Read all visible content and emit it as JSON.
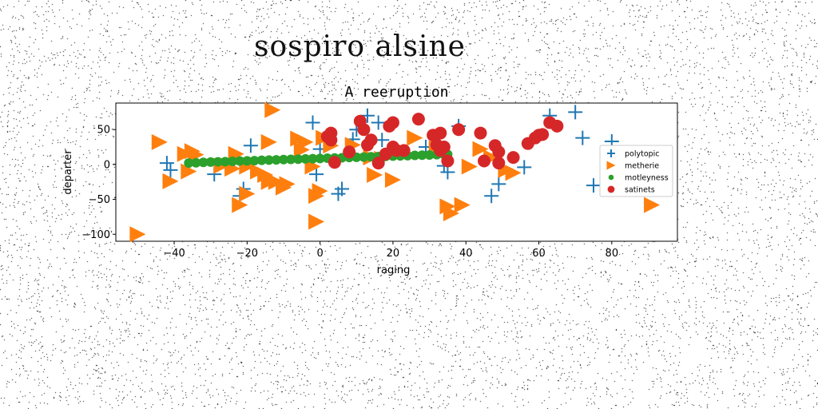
{
  "page": {
    "suptitle": "sospiro alsine"
  },
  "chart_data": {
    "type": "scatter",
    "title": "A reeruption",
    "xlabel": "raging",
    "ylabel": "departer",
    "xlim": [
      -56,
      98
    ],
    "ylim": [
      -110,
      88
    ],
    "xticks": [
      -40,
      -20,
      0,
      20,
      40,
      60,
      80
    ],
    "yticks": [
      -100,
      -50,
      0,
      50
    ],
    "grid": false,
    "legend_position": "right",
    "series": [
      {
        "name": "polytopic",
        "marker": "plus",
        "color": "#1f77b4",
        "points": [
          [
            -42,
            2
          ],
          [
            -41,
            -8
          ],
          [
            -29,
            -14
          ],
          [
            -22,
            -45
          ],
          [
            -21,
            -35
          ],
          [
            -19,
            27
          ],
          [
            -2,
            60
          ],
          [
            -1,
            -14
          ],
          [
            0,
            22
          ],
          [
            5,
            -42
          ],
          [
            6,
            -35
          ],
          [
            9,
            36
          ],
          [
            10,
            50
          ],
          [
            13,
            70
          ],
          [
            16,
            60
          ],
          [
            17,
            35
          ],
          [
            29,
            25
          ],
          [
            34,
            -2
          ],
          [
            35,
            -11
          ],
          [
            38,
            55
          ],
          [
            47,
            -45
          ],
          [
            49,
            -28
          ],
          [
            56,
            -4
          ],
          [
            63,
            70
          ],
          [
            70,
            75
          ],
          [
            72,
            38
          ],
          [
            75,
            -30
          ],
          [
            80,
            33
          ]
        ]
      },
      {
        "name": "metherie",
        "marker": "triangle-right",
        "color": "#ff7f0e",
        "points": [
          [
            -50,
            -100
          ],
          [
            -44,
            32
          ],
          [
            -41,
            -24
          ],
          [
            -37,
            15
          ],
          [
            -36,
            -10
          ],
          [
            -35,
            19
          ],
          [
            -34,
            14
          ],
          [
            -27,
            -2
          ],
          [
            -24,
            -6
          ],
          [
            -23,
            15
          ],
          [
            -22,
            -58
          ],
          [
            -20,
            -42
          ],
          [
            -20,
            -3
          ],
          [
            -17,
            -10
          ],
          [
            -15,
            -15
          ],
          [
            -14,
            -25
          ],
          [
            -14,
            32
          ],
          [
            -13,
            78
          ],
          [
            -12,
            -25
          ],
          [
            -10,
            -33
          ],
          [
            -9,
            -28
          ],
          [
            -6,
            37
          ],
          [
            -5,
            21
          ],
          [
            -4,
            32
          ],
          [
            -2,
            -3
          ],
          [
            -1,
            -82
          ],
          [
            -1,
            -45
          ],
          [
            0,
            -38
          ],
          [
            1,
            38
          ],
          [
            3,
            27
          ],
          [
            9,
            28
          ],
          [
            14,
            10
          ],
          [
            15,
            -15
          ],
          [
            17,
            8
          ],
          [
            20,
            -22
          ],
          [
            26,
            38
          ],
          [
            32,
            23
          ],
          [
            35,
            -60
          ],
          [
            36,
            -70
          ],
          [
            39,
            -58
          ],
          [
            41,
            -3
          ],
          [
            44,
            22
          ],
          [
            47,
            10
          ],
          [
            51,
            -8
          ],
          [
            53,
            -12
          ],
          [
            91,
            -58
          ]
        ]
      },
      {
        "name": "motleyness",
        "marker": "circle-small",
        "color": "#2ca02c",
        "points": [
          [
            -36,
            2
          ],
          [
            -34,
            2.5
          ],
          [
            -32,
            3
          ],
          [
            -30,
            3.5
          ],
          [
            -28,
            3.8
          ],
          [
            -26,
            4
          ],
          [
            -24,
            4.5
          ],
          [
            -22,
            5
          ],
          [
            -20,
            5.2
          ],
          [
            -18,
            5.5
          ],
          [
            -16,
            6
          ],
          [
            -14,
            6.3
          ],
          [
            -12,
            6.6
          ],
          [
            -10,
            7
          ],
          [
            -8,
            7.3
          ],
          [
            -6,
            7.6
          ],
          [
            -4,
            8
          ],
          [
            -2,
            8.3
          ],
          [
            0,
            8.6
          ],
          [
            2,
            9
          ],
          [
            4,
            9.3
          ],
          [
            6,
            9.6
          ],
          [
            8,
            10
          ],
          [
            10,
            10.3
          ],
          [
            12,
            10.6
          ],
          [
            14,
            11
          ],
          [
            16,
            11.3
          ],
          [
            18,
            11.6
          ],
          [
            20,
            12
          ],
          [
            22,
            12.3
          ],
          [
            24,
            12.6
          ],
          [
            26,
            13
          ],
          [
            28,
            13.3
          ],
          [
            30,
            13.6
          ],
          [
            32,
            14
          ],
          [
            34,
            14.3
          ],
          [
            35,
            14.5
          ]
        ]
      },
      {
        "name": "satinets",
        "marker": "circle",
        "color": "#d62728",
        "points": [
          [
            2,
            40
          ],
          [
            3,
            35
          ],
          [
            3,
            45
          ],
          [
            4,
            3
          ],
          [
            8,
            18
          ],
          [
            11,
            62
          ],
          [
            12,
            50
          ],
          [
            13,
            28
          ],
          [
            14,
            35
          ],
          [
            16,
            2
          ],
          [
            18,
            15
          ],
          [
            19,
            55
          ],
          [
            20,
            60
          ],
          [
            20,
            25
          ],
          [
            21,
            20
          ],
          [
            23,
            20
          ],
          [
            27,
            65
          ],
          [
            31,
            42
          ],
          [
            32,
            28
          ],
          [
            33,
            20
          ],
          [
            33,
            45
          ],
          [
            34,
            25
          ],
          [
            35,
            5
          ],
          [
            38,
            50
          ],
          [
            44,
            45
          ],
          [
            45,
            5
          ],
          [
            48,
            27
          ],
          [
            49,
            18
          ],
          [
            49,
            2
          ],
          [
            53,
            10
          ],
          [
            57,
            30
          ],
          [
            59,
            38
          ],
          [
            60,
            42
          ],
          [
            61,
            43
          ],
          [
            63,
            60
          ],
          [
            65,
            55
          ]
        ]
      }
    ]
  }
}
